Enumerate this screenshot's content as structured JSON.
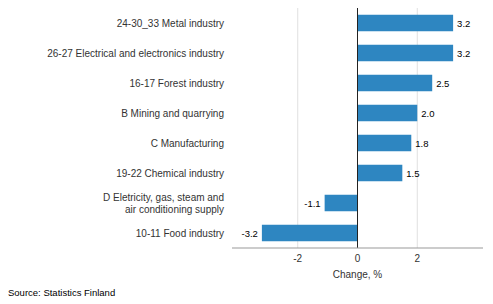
{
  "chart_data": {
    "type": "bar",
    "orientation": "horizontal",
    "categories": [
      "10-11 Food industry",
      "D Eletricity, gas, steam and\nair conditioning supply",
      "19-22 Chemical industry",
      "C Manufacturing",
      "B Mining and quarrying",
      "16-17 Forest industry",
      "26-27 Electrical and electronics industry",
      "24-30_33 Metal industry"
    ],
    "values": [
      -3.2,
      -1.1,
      1.5,
      1.8,
      2.0,
      2.5,
      3.2,
      3.2
    ],
    "value_labels": [
      "-3.2",
      "-1.1",
      "1.5",
      "1.8",
      "2.0",
      "2.5",
      "3.2",
      "3.2"
    ],
    "data_labels": true,
    "color": "#2e86c1",
    "xlabel": "Change, %",
    "xlim": [
      -4.2,
      4.2
    ],
    "xticks": [
      -2,
      0,
      2
    ],
    "grid": true,
    "annotations": [
      "Source: Statistics Finland"
    ]
  }
}
